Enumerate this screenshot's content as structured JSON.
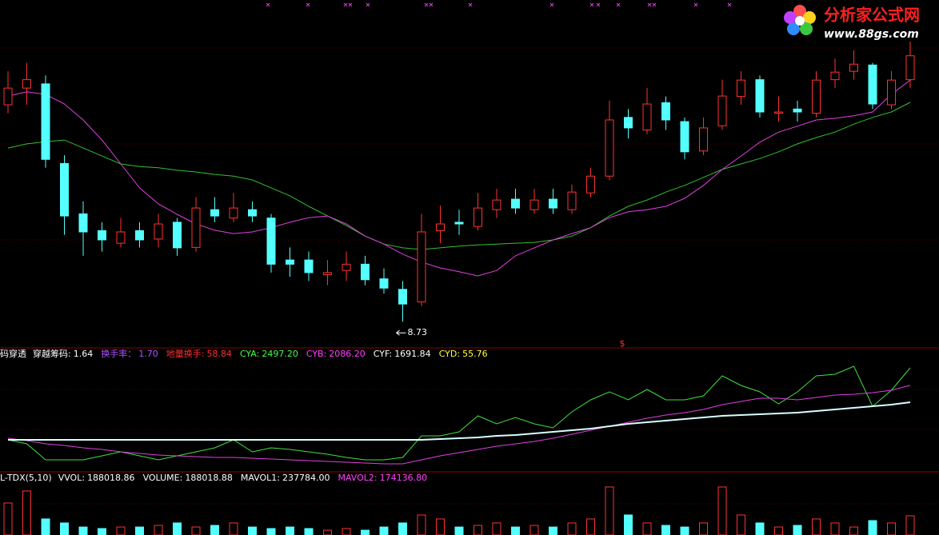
{
  "logo": {
    "title": "分析家公式网",
    "url": "www.88gs.com"
  },
  "chart_data": [
    {
      "type": "candlestick",
      "up_color": "#ff3232",
      "down_color": "#54ffff",
      "ylim": [
        8.2,
        16.4
      ],
      "open": [
        13.9,
        14.3,
        14.4,
        12.5,
        11.3,
        10.9,
        10.6,
        10.9,
        10.7,
        11.1,
        10.5,
        11.4,
        11.2,
        11.4,
        11.2,
        10.2,
        10.2,
        9.85,
        9.95,
        10.1,
        9.75,
        9.5,
        9.2,
        10.9,
        11.1,
        11.0,
        11.4,
        11.65,
        11.4,
        11.65,
        11.4,
        11.8,
        12.2,
        13.6,
        13.3,
        13.95,
        13.5,
        12.8,
        13.4,
        14.1,
        14.5,
        13.7,
        13.8,
        13.7,
        14.5,
        14.7,
        14.85,
        13.9,
        14.5
      ],
      "high": [
        14.7,
        14.9,
        14.6,
        12.7,
        11.6,
        11.1,
        11.2,
        11.1,
        11.3,
        11.2,
        11.7,
        11.7,
        11.8,
        11.6,
        11.3,
        10.5,
        10.4,
        10.2,
        10.4,
        10.3,
        10.0,
        9.7,
        11.3,
        11.5,
        11.4,
        11.8,
        11.9,
        11.9,
        11.9,
        11.9,
        12.0,
        12.4,
        14.0,
        13.8,
        14.3,
        14.1,
        13.6,
        13.6,
        14.5,
        14.7,
        14.6,
        14.1,
        14.0,
        14.7,
        15.0,
        15.2,
        14.9,
        14.7,
        15.5
      ],
      "low": [
        13.7,
        13.9,
        12.4,
        10.8,
        10.3,
        10.4,
        10.5,
        10.5,
        10.5,
        10.3,
        10.4,
        11.1,
        11.1,
        11.1,
        9.9,
        9.8,
        9.7,
        9.6,
        9.7,
        9.6,
        9.4,
        8.73,
        9.1,
        10.6,
        10.8,
        10.9,
        11.2,
        11.3,
        11.3,
        11.3,
        11.3,
        11.7,
        12.1,
        13.1,
        13.2,
        13.3,
        12.6,
        12.7,
        13.3,
        13.9,
        13.6,
        13.5,
        13.5,
        13.6,
        14.3,
        14.5,
        13.8,
        13.8,
        14.3
      ],
      "close": [
        14.3,
        14.5,
        12.6,
        11.25,
        10.87,
        10.68,
        10.87,
        10.68,
        11.06,
        10.49,
        11.44,
        11.25,
        11.44,
        11.25,
        10.1,
        10.1,
        9.9,
        9.9,
        10.1,
        9.73,
        9.53,
        9.15,
        10.87,
        11.06,
        11.06,
        11.44,
        11.63,
        11.44,
        11.63,
        11.44,
        11.82,
        12.2,
        13.54,
        13.35,
        13.92,
        13.54,
        12.78,
        13.35,
        14.11,
        14.49,
        13.73,
        13.73,
        13.73,
        14.49,
        14.68,
        14.87,
        13.92,
        14.49,
        15.07
      ],
      "low_label_index": 21,
      "signal_label": "$",
      "series": [
        {
          "color": "#30c030",
          "values": [
            12.87,
            12.97,
            13.02,
            13.06,
            12.87,
            12.68,
            12.49,
            12.43,
            12.4,
            12.34,
            12.3,
            12.24,
            12.2,
            12.11,
            11.92,
            11.73,
            11.48,
            11.25,
            11.02,
            10.77,
            10.58,
            10.49,
            10.45,
            10.49,
            10.53,
            10.56,
            10.58,
            10.6,
            10.62,
            10.68,
            10.77,
            10.97,
            11.25,
            11.48,
            11.63,
            11.82,
            11.98,
            12.17,
            12.36,
            12.49,
            12.62,
            12.78,
            12.97,
            13.12,
            13.25,
            13.44,
            13.6,
            13.73,
            13.96
          ]
        },
        {
          "color": "#e040e0",
          "values": [
            14.11,
            14.21,
            14.15,
            13.92,
            13.54,
            13.06,
            12.49,
            11.92,
            11.54,
            11.29,
            11.06,
            10.91,
            10.83,
            10.87,
            10.97,
            11.1,
            11.21,
            11.25,
            11.06,
            10.77,
            10.58,
            10.34,
            10.15,
            10.01,
            9.92,
            9.82,
            9.95,
            10.3,
            10.49,
            10.68,
            10.83,
            10.97,
            11.21,
            11.35,
            11.4,
            11.48,
            11.67,
            11.98,
            12.36,
            12.68,
            13.01,
            13.25,
            13.39,
            13.54,
            13.58,
            13.64,
            13.73,
            14.15,
            14.49
          ]
        }
      ]
    },
    {
      "type": "line",
      "title": "码穿透",
      "readouts": [
        {
          "label": "穿越筹码:",
          "value": "1.64",
          "color": "#ffffff"
        },
        {
          "label": "换手率：",
          "value": "1.70",
          "color": "#b050ff"
        },
        {
          "label": "地量换手:",
          "value": "58.84",
          "color": "#ff3030"
        },
        {
          "label": "CYA:",
          "value": "2497.20",
          "color": "#40ff40"
        },
        {
          "label": "CYB:",
          "value": "2086.20",
          "color": "#ff40ff"
        },
        {
          "label": "CYF:",
          "value": "1691.84",
          "color": "#ffffff"
        },
        {
          "label": "CYD:",
          "value": "55.76",
          "color": "#ffff40"
        }
      ],
      "ylim": [
        100,
        2965
      ],
      "series": [
        {
          "color": "#40e040",
          "values": [
            811.5,
            717.8,
            343.2,
            343.2,
            343.2,
            436.9,
            530.5,
            436.9,
            343.2,
            436.9,
            530.5,
            624.2,
            811.5,
            530.5,
            624.2,
            586.7,
            530.5,
            474.4,
            399.4,
            343.2,
            343.2,
            399.4,
            905.2,
            905.2,
            998.8,
            1373.4,
            1186.1,
            1335.9,
            1186.1,
            1092.4,
            1467.0,
            1748.0,
            1935.3,
            1748.0,
            1991.5,
            1748.0,
            1748.0,
            1841.6,
            2309.9,
            2085.1,
            1935.3,
            1654.3,
            1935.3,
            2309.9,
            2347.4,
            2534.7,
            1598.2,
            1972.8,
            2497.2
          ]
        },
        {
          "color": "#e040e0",
          "values": [
            849.0,
            792.8,
            717.8,
            680.4,
            624.2,
            586.7,
            530.5,
            493.1,
            455.6,
            436.9,
            418.2,
            399.4,
            399.4,
            380.7,
            362.0,
            343.2,
            324.5,
            305.8,
            287.1,
            268.3,
            249.6,
            249.6,
            343.2,
            436.9,
            511.8,
            586.7,
            661.7,
            717.8,
            774.0,
            849.0,
            942.6,
            1036.3,
            1129.9,
            1223.6,
            1317.2,
            1392.1,
            1448.3,
            1523.2,
            1635.6,
            1710.5,
            1785.5,
            1785.5,
            1748.0,
            1804.2,
            1860.4,
            1879.1,
            1916.6,
            1972.8,
            2086.2
          ]
        },
        {
          "color": "#d8ffff",
          "values": [
            811.5,
            811.5,
            811.5,
            811.5,
            811.5,
            811.5,
            811.5,
            811.5,
            811.5,
            811.5,
            811.5,
            811.5,
            811.5,
            811.5,
            811.5,
            811.5,
            811.5,
            811.5,
            811.5,
            811.5,
            811.5,
            811.5,
            811.5,
            830.2,
            849.0,
            867.7,
            905.2,
            923.9,
            961.3,
            998.8,
            1036.3,
            1073.7,
            1129.9,
            1186.1,
            1223.6,
            1261.0,
            1298.5,
            1335.9,
            1373.4,
            1392.1,
            1410.9,
            1429.6,
            1448.3,
            1485.8,
            1523.2,
            1560.7,
            1598.2,
            1635.6,
            1691.84
          ]
        }
      ]
    },
    {
      "type": "bar",
      "title": "L-TDX(5,10)",
      "readouts": [
        {
          "label": "VVOL:",
          "value": "188018.86",
          "color": "#ffffff"
        },
        {
          "label": "VOLUME:",
          "value": "188018.88",
          "color": "#ffffff"
        },
        {
          "label": "MAVOL1:",
          "value": "237784.00",
          "color": "#ffffff"
        },
        {
          "label": "MAVOL2:",
          "value": "174136.80",
          "color": "#ff40ff"
        }
      ],
      "ylim": [
        0,
        540000
      ],
      "values": [
        313000,
        431000,
        157000,
        118000,
        78000,
        63000,
        78000,
        78000,
        94000,
        118000,
        78000,
        94000,
        118000,
        78000,
        63000,
        78000,
        63000,
        47000,
        63000,
        47000,
        78000,
        118000,
        196000,
        157000,
        78000,
        94000,
        118000,
        78000,
        94000,
        78000,
        118000,
        157000,
        470000,
        196000,
        118000,
        94000,
        78000,
        118000,
        470000,
        196000,
        118000,
        78000,
        94000,
        157000,
        118000,
        78000,
        141000,
        118000,
        188018.88
      ]
    }
  ]
}
